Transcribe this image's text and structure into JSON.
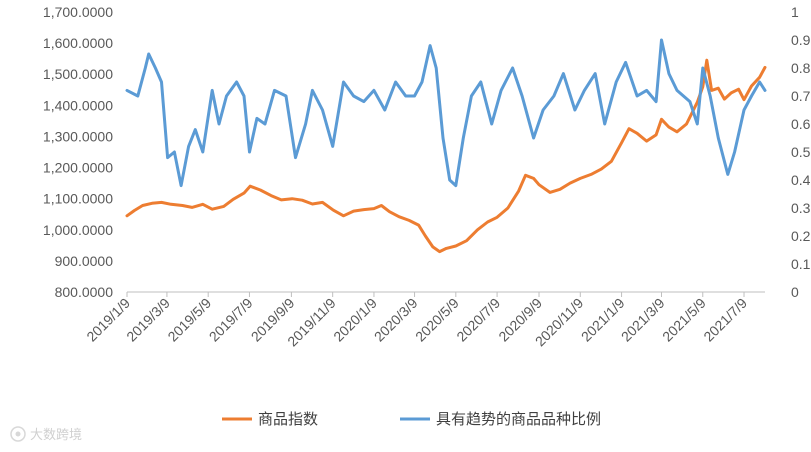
{
  "chart_data": {
    "type": "line",
    "title": "",
    "xlabel": "",
    "ylabel_left": "",
    "ylabel_right": "",
    "y_left_range": [
      800,
      1700
    ],
    "y_left_ticks": [
      "800.0000",
      "900.0000",
      "1,000.0000",
      "1,100.0000",
      "1,200.0000",
      "1,300.0000",
      "1,400.0000",
      "1,500.0000",
      "1,600.0000",
      "1,700.0000"
    ],
    "y_right_range": [
      0,
      1
    ],
    "y_right_ticks": [
      "0",
      "0.1",
      "0.2",
      "0.3",
      "0.4",
      "0.5",
      "0.6",
      "0.7",
      "0.8",
      "0.9",
      "1"
    ],
    "x_range": [
      "2019-01-09",
      "2021-08-09"
    ],
    "x_tick_dates": [
      "2019-01-09",
      "2019-03-09",
      "2019-05-09",
      "2019-07-09",
      "2019-09-09",
      "2019-11-09",
      "2020-01-09",
      "2020-03-09",
      "2020-05-09",
      "2020-07-09",
      "2020-09-09",
      "2020-11-09",
      "2021-01-09",
      "2021-03-09",
      "2021-05-09",
      "2021-07-09"
    ],
    "x_tick_labels": [
      "2019/1/9",
      "2019/3/9",
      "2019/5/9",
      "2019/7/9",
      "2019/9/9",
      "2019/11/9",
      "2020/1/9",
      "2020/3/9",
      "2020/5/9",
      "2020/7/9",
      "2020/9/9",
      "2020/11/9",
      "2021/1/9",
      "2021/3/9",
      "2021/5/9",
      "2021/7/9"
    ],
    "grid": false,
    "legend_position": "bottom",
    "series": [
      {
        "name": "商品指数",
        "axis": "left",
        "color": "#ED7D31",
        "points": [
          [
            "2019-01-09",
            1045
          ],
          [
            "2019-01-20",
            1062
          ],
          [
            "2019-02-01",
            1078
          ],
          [
            "2019-02-15",
            1085
          ],
          [
            "2019-03-01",
            1088
          ],
          [
            "2019-03-15",
            1082
          ],
          [
            "2019-04-01",
            1078
          ],
          [
            "2019-04-15",
            1072
          ],
          [
            "2019-05-01",
            1082
          ],
          [
            "2019-05-15",
            1066
          ],
          [
            "2019-06-01",
            1075
          ],
          [
            "2019-06-15",
            1098
          ],
          [
            "2019-07-01",
            1118
          ],
          [
            "2019-07-10",
            1140
          ],
          [
            "2019-07-25",
            1128
          ],
          [
            "2019-08-10",
            1110
          ],
          [
            "2019-08-25",
            1096
          ],
          [
            "2019-09-10",
            1100
          ],
          [
            "2019-09-25",
            1095
          ],
          [
            "2019-10-10",
            1083
          ],
          [
            "2019-10-25",
            1088
          ],
          [
            "2019-11-10",
            1063
          ],
          [
            "2019-11-25",
            1045
          ],
          [
            "2019-12-10",
            1060
          ],
          [
            "2019-12-25",
            1065
          ],
          [
            "2020-01-09",
            1068
          ],
          [
            "2020-01-20",
            1078
          ],
          [
            "2020-02-01",
            1058
          ],
          [
            "2020-02-15",
            1042
          ],
          [
            "2020-03-01",
            1030
          ],
          [
            "2020-03-15",
            1015
          ],
          [
            "2020-03-25",
            980
          ],
          [
            "2020-04-05",
            945
          ],
          [
            "2020-04-15",
            930
          ],
          [
            "2020-04-25",
            940
          ],
          [
            "2020-05-09",
            948
          ],
          [
            "2020-05-25",
            965
          ],
          [
            "2020-06-10",
            1000
          ],
          [
            "2020-06-25",
            1025
          ],
          [
            "2020-07-09",
            1040
          ],
          [
            "2020-07-25",
            1070
          ],
          [
            "2020-08-10",
            1125
          ],
          [
            "2020-08-20",
            1175
          ],
          [
            "2020-09-01",
            1165
          ],
          [
            "2020-09-09",
            1145
          ],
          [
            "2020-09-25",
            1120
          ],
          [
            "2020-10-10",
            1130
          ],
          [
            "2020-10-25",
            1150
          ],
          [
            "2020-11-09",
            1165
          ],
          [
            "2020-11-25",
            1178
          ],
          [
            "2020-12-10",
            1195
          ],
          [
            "2020-12-25",
            1220
          ],
          [
            "2021-01-09",
            1280
          ],
          [
            "2021-01-20",
            1325
          ],
          [
            "2021-02-01",
            1310
          ],
          [
            "2021-02-15",
            1285
          ],
          [
            "2021-03-01",
            1305
          ],
          [
            "2021-03-09",
            1355
          ],
          [
            "2021-03-20",
            1330
          ],
          [
            "2021-04-01",
            1315
          ],
          [
            "2021-04-15",
            1340
          ],
          [
            "2021-05-01",
            1410
          ],
          [
            "2021-05-09",
            1460
          ],
          [
            "2021-05-15",
            1545
          ],
          [
            "2021-05-22",
            1448
          ],
          [
            "2021-06-01",
            1455
          ],
          [
            "2021-06-10",
            1420
          ],
          [
            "2021-06-20",
            1440
          ],
          [
            "2021-07-01",
            1452
          ],
          [
            "2021-07-09",
            1418
          ],
          [
            "2021-07-20",
            1462
          ],
          [
            "2021-08-01",
            1490
          ],
          [
            "2021-08-09",
            1522
          ]
        ]
      },
      {
        "name": "具有趋势的商品品种比例",
        "axis": "right",
        "color": "#5B9BD5",
        "points": [
          [
            "2019-01-09",
            0.72
          ],
          [
            "2019-01-25",
            0.7
          ],
          [
            "2019-02-05",
            0.8
          ],
          [
            "2019-02-10",
            0.85
          ],
          [
            "2019-02-20",
            0.8
          ],
          [
            "2019-03-01",
            0.75
          ],
          [
            "2019-03-10",
            0.48
          ],
          [
            "2019-03-20",
            0.5
          ],
          [
            "2019-03-30",
            0.38
          ],
          [
            "2019-04-10",
            0.52
          ],
          [
            "2019-04-20",
            0.58
          ],
          [
            "2019-05-01",
            0.5
          ],
          [
            "2019-05-15",
            0.72
          ],
          [
            "2019-05-25",
            0.6
          ],
          [
            "2019-06-05",
            0.7
          ],
          [
            "2019-06-20",
            0.75
          ],
          [
            "2019-07-01",
            0.7
          ],
          [
            "2019-07-09",
            0.5
          ],
          [
            "2019-07-20",
            0.62
          ],
          [
            "2019-08-01",
            0.6
          ],
          [
            "2019-08-15",
            0.72
          ],
          [
            "2019-09-01",
            0.7
          ],
          [
            "2019-09-15",
            0.48
          ],
          [
            "2019-09-30",
            0.6
          ],
          [
            "2019-10-10",
            0.72
          ],
          [
            "2019-10-25",
            0.65
          ],
          [
            "2019-11-09",
            0.52
          ],
          [
            "2019-11-25",
            0.75
          ],
          [
            "2019-12-10",
            0.7
          ],
          [
            "2019-12-25",
            0.68
          ],
          [
            "2020-01-09",
            0.72
          ],
          [
            "2020-01-25",
            0.65
          ],
          [
            "2020-02-10",
            0.75
          ],
          [
            "2020-02-25",
            0.7
          ],
          [
            "2020-03-09",
            0.7
          ],
          [
            "2020-03-20",
            0.75
          ],
          [
            "2020-04-01",
            0.88
          ],
          [
            "2020-04-10",
            0.8
          ],
          [
            "2020-04-20",
            0.55
          ],
          [
            "2020-04-30",
            0.4
          ],
          [
            "2020-05-09",
            0.38
          ],
          [
            "2020-05-20",
            0.55
          ],
          [
            "2020-06-01",
            0.7
          ],
          [
            "2020-06-15",
            0.75
          ],
          [
            "2020-07-01",
            0.6
          ],
          [
            "2020-07-15",
            0.72
          ],
          [
            "2020-08-01",
            0.8
          ],
          [
            "2020-08-15",
            0.7
          ],
          [
            "2020-09-01",
            0.55
          ],
          [
            "2020-09-15",
            0.65
          ],
          [
            "2020-10-01",
            0.7
          ],
          [
            "2020-10-15",
            0.78
          ],
          [
            "2020-11-01",
            0.65
          ],
          [
            "2020-11-15",
            0.72
          ],
          [
            "2020-12-01",
            0.78
          ],
          [
            "2020-12-15",
            0.6
          ],
          [
            "2021-01-01",
            0.75
          ],
          [
            "2021-01-15",
            0.82
          ],
          [
            "2021-02-01",
            0.7
          ],
          [
            "2021-02-15",
            0.72
          ],
          [
            "2021-03-01",
            0.68
          ],
          [
            "2021-03-09",
            0.9
          ],
          [
            "2021-03-20",
            0.78
          ],
          [
            "2021-04-01",
            0.72
          ],
          [
            "2021-04-20",
            0.68
          ],
          [
            "2021-05-01",
            0.6
          ],
          [
            "2021-05-09",
            0.8
          ],
          [
            "2021-05-20",
            0.7
          ],
          [
            "2021-06-01",
            0.55
          ],
          [
            "2021-06-15",
            0.42
          ],
          [
            "2021-06-25",
            0.5
          ],
          [
            "2021-07-09",
            0.65
          ],
          [
            "2021-07-20",
            0.7
          ],
          [
            "2021-08-01",
            0.75
          ],
          [
            "2021-08-09",
            0.72
          ]
        ]
      }
    ]
  },
  "watermark": {
    "icon": "watermark-logo-icon",
    "text": "大数跨境"
  }
}
